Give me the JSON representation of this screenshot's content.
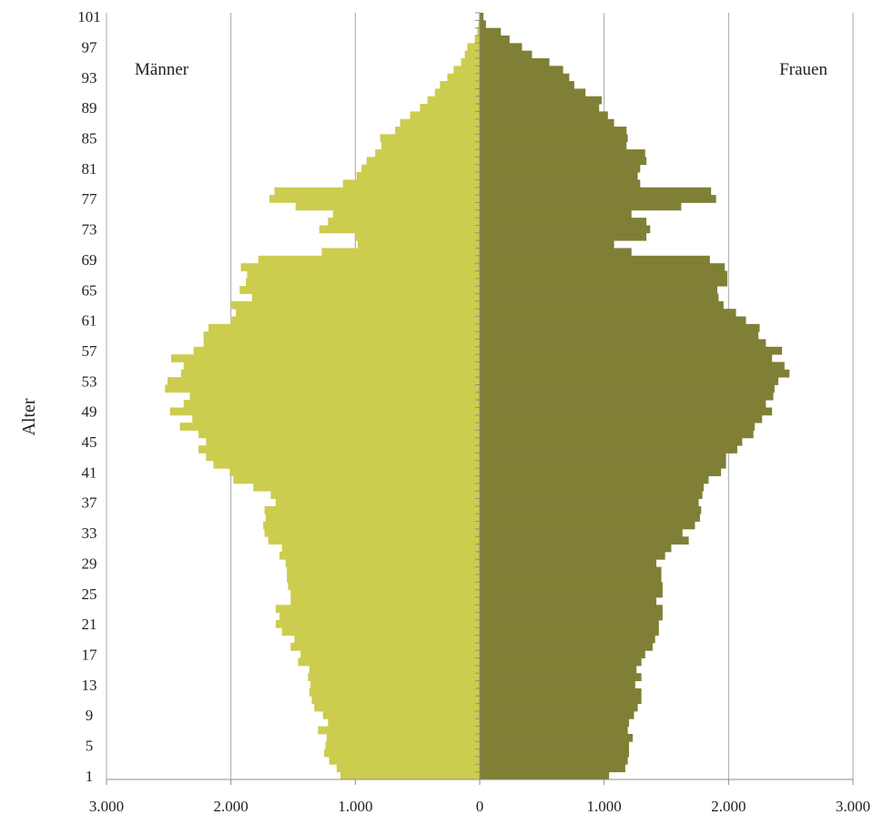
{
  "chart_data": {
    "type": "bar",
    "orientation": "horizontal",
    "ylabel": "Alter",
    "xlim": [
      -3000,
      3000
    ],
    "ylim": [
      1,
      101
    ],
    "x_ticks": [
      -3000,
      -2000,
      -1000,
      0,
      1000,
      2000,
      3000
    ],
    "x_tick_labels": [
      "3.000",
      "2.000",
      "1.000",
      "0",
      "1.000",
      "2.000",
      "3.000"
    ],
    "y_tick_labels": [
      "1",
      "5",
      "9",
      "13",
      "17",
      "21",
      "25",
      "29",
      "33",
      "37",
      "41",
      "45",
      "49",
      "53",
      "57",
      "61",
      "65",
      "69",
      "73",
      "77",
      "81",
      "85",
      "89",
      "93",
      "97",
      "101"
    ],
    "grid": true,
    "annotations": [
      "Männer",
      "Frauen"
    ],
    "colors": {
      "maenner": "#cccc4e",
      "frauen": "#7f7f35",
      "grid": "#a6a6a6"
    },
    "ages": [
      1,
      2,
      3,
      4,
      5,
      6,
      7,
      8,
      9,
      10,
      11,
      12,
      13,
      14,
      15,
      16,
      17,
      18,
      19,
      20,
      21,
      22,
      23,
      24,
      25,
      26,
      27,
      28,
      29,
      30,
      31,
      32,
      33,
      34,
      35,
      36,
      37,
      38,
      39,
      40,
      41,
      42,
      43,
      44,
      45,
      46,
      47,
      48,
      49,
      50,
      51,
      52,
      53,
      54,
      55,
      56,
      57,
      58,
      59,
      60,
      61,
      62,
      63,
      64,
      65,
      66,
      67,
      68,
      69,
      70,
      71,
      72,
      73,
      74,
      75,
      76,
      77,
      78,
      79,
      80,
      81,
      82,
      83,
      84,
      85,
      86,
      87,
      88,
      89,
      90,
      91,
      92,
      93,
      94,
      95,
      96,
      97,
      98,
      99,
      100,
      101
    ],
    "series": [
      {
        "name": "Männer",
        "values": [
          1120,
          1150,
          1210,
          1250,
          1240,
          1230,
          1300,
          1220,
          1260,
          1330,
          1350,
          1370,
          1360,
          1380,
          1370,
          1460,
          1440,
          1520,
          1490,
          1590,
          1640,
          1610,
          1640,
          1520,
          1520,
          1540,
          1550,
          1550,
          1560,
          1610,
          1590,
          1700,
          1730,
          1740,
          1720,
          1730,
          1640,
          1680,
          1820,
          1980,
          2010,
          2140,
          2200,
          2260,
          2200,
          2260,
          2410,
          2310,
          2490,
          2380,
          2330,
          2530,
          2510,
          2400,
          2380,
          2480,
          2300,
          2220,
          2220,
          2180,
          2000,
          1960,
          2000,
          1830,
          1930,
          1880,
          1870,
          1920,
          1780,
          1270,
          980,
          1000,
          1290,
          1220,
          1180,
          1480,
          1690,
          1650,
          1100,
          990,
          950,
          910,
          840,
          790,
          800,
          680,
          640,
          560,
          480,
          420,
          360,
          320,
          260,
          210,
          150,
          120,
          100,
          40,
          20,
          10,
          5
        ]
      },
      {
        "name": "Frauen",
        "values": [
          1040,
          1170,
          1190,
          1200,
          1200,
          1230,
          1190,
          1200,
          1240,
          1270,
          1300,
          1300,
          1250,
          1300,
          1260,
          1300,
          1330,
          1390,
          1410,
          1440,
          1440,
          1470,
          1470,
          1420,
          1470,
          1470,
          1460,
          1460,
          1420,
          1490,
          1540,
          1680,
          1630,
          1730,
          1770,
          1780,
          1760,
          1790,
          1800,
          1840,
          1940,
          1980,
          1980,
          2070,
          2110,
          2200,
          2210,
          2270,
          2350,
          2300,
          2360,
          2370,
          2400,
          2490,
          2450,
          2350,
          2430,
          2300,
          2240,
          2250,
          2140,
          2060,
          1960,
          1920,
          1910,
          1990,
          1990,
          1970,
          1850,
          1220,
          1080,
          1340,
          1370,
          1340,
          1220,
          1620,
          1900,
          1860,
          1290,
          1270,
          1290,
          1340,
          1330,
          1180,
          1190,
          1180,
          1080,
          1030,
          960,
          980,
          850,
          760,
          720,
          670,
          560,
          420,
          340,
          240,
          170,
          50,
          30
        ]
      }
    ]
  }
}
